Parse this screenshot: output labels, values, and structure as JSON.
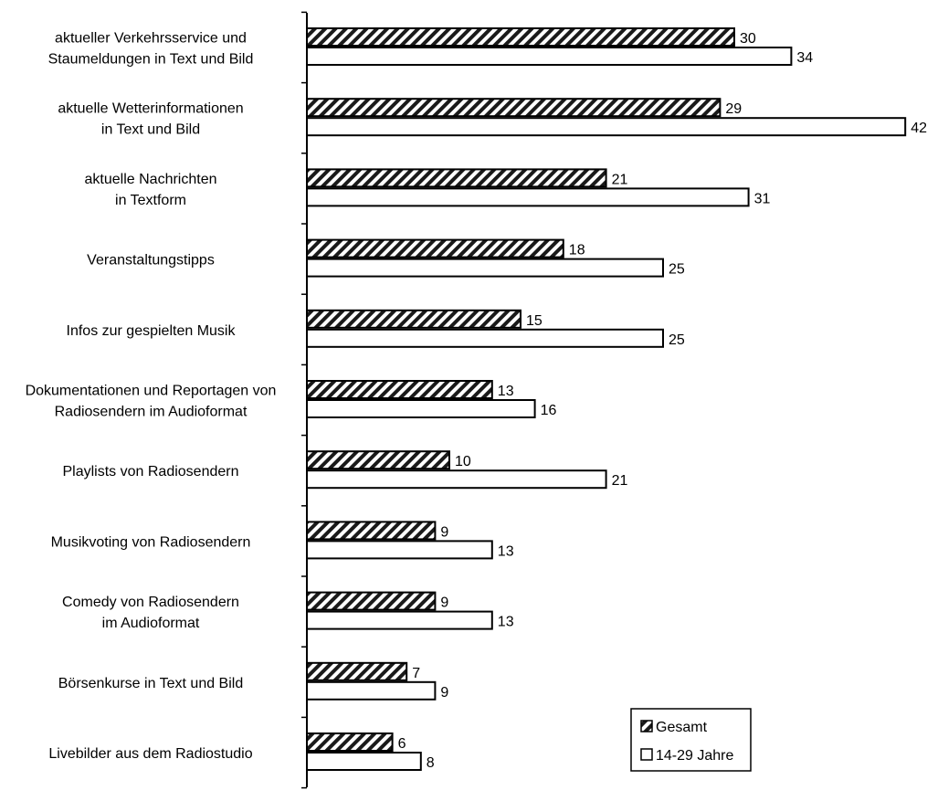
{
  "chart_data": {
    "type": "bar",
    "orientation": "horizontal",
    "categories": [
      [
        "aktueller Verkehrsservice und",
        "Staumeldungen in Text und Bild"
      ],
      [
        "aktuelle Wetterinformationen",
        "in Text und Bild"
      ],
      [
        "aktuelle Nachrichten",
        "in Textform"
      ],
      [
        "Veranstaltungstipps"
      ],
      [
        "Infos zur gespielten Musik"
      ],
      [
        "Dokumentationen und Reportagen von",
        "Radiosendern im Audioformat"
      ],
      [
        "Playlists von Radiosendern"
      ],
      [
        "Musikvoting von Radiosendern"
      ],
      [
        "Comedy von Radiosendern",
        "im Audioformat"
      ],
      [
        "Börsenkurse in Text und Bild"
      ],
      [
        "Livebilder aus dem Radiostudio"
      ]
    ],
    "series": [
      {
        "name": "Gesamt",
        "pattern": "hatched",
        "values": [
          30,
          29,
          21,
          18,
          15,
          13,
          10,
          9,
          9,
          7,
          6
        ]
      },
      {
        "name": "14-29 Jahre",
        "pattern": "white",
        "values": [
          34,
          42,
          31,
          25,
          25,
          16,
          21,
          13,
          13,
          9,
          8
        ]
      }
    ],
    "grid": false,
    "legend_position": "bottom-right",
    "colors": {
      "bar_outline": "#000000",
      "hatch": "#1a1a1a",
      "fill_white": "#ffffff"
    }
  }
}
